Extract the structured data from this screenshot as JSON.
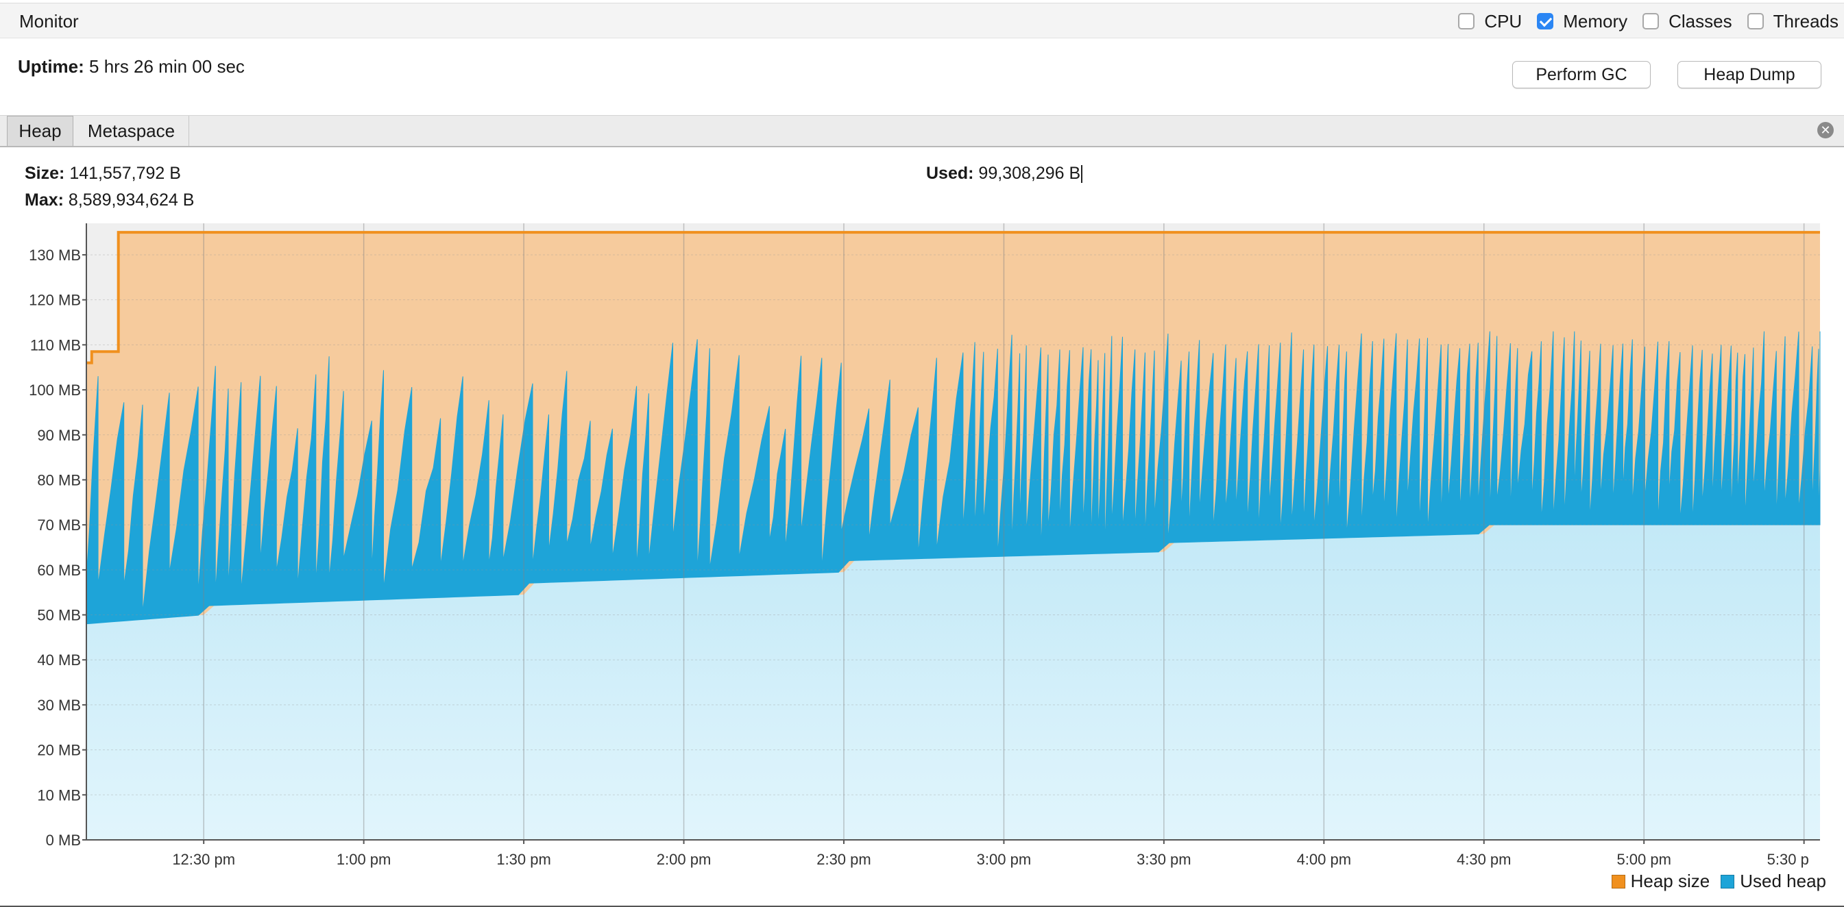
{
  "window": {
    "title": "Monitor"
  },
  "toggles": [
    {
      "label": "CPU",
      "checked": false
    },
    {
      "label": "Memory",
      "checked": true
    },
    {
      "label": "Classes",
      "checked": false
    },
    {
      "label": "Threads",
      "checked": false
    }
  ],
  "uptime": {
    "label": "Uptime:",
    "value": "5 hrs 26 min 00 sec"
  },
  "buttons": {
    "gc": "Perform GC",
    "heap_dump": "Heap Dump"
  },
  "tabs": [
    {
      "label": "Heap",
      "active": true
    },
    {
      "label": "Metaspace",
      "active": false
    }
  ],
  "stats": {
    "size_label": "Size:",
    "size_value": "141,557,792 B",
    "max_label": "Max:",
    "max_value": "8,589,934,624 B",
    "used_label": "Used:",
    "used_value": "99,308,296 B"
  },
  "legend": [
    {
      "name": "Heap size",
      "color": "#f0901e"
    },
    {
      "name": "Used heap",
      "color": "#1ea4d8"
    }
  ],
  "chart_data": {
    "type": "area",
    "ylim": [
      0,
      137
    ],
    "y_unit": "MB",
    "y_ticks": [
      "0 MB",
      "10 MB",
      "20 MB",
      "30 MB",
      "40 MB",
      "50 MB",
      "60 MB",
      "70 MB",
      "80 MB",
      "90 MB",
      "100 MB",
      "110 MB",
      "120 MB",
      "130 MB"
    ],
    "x_ticks": [
      "12:30 pm",
      "1:00 pm",
      "1:30 pm",
      "2:00 pm",
      "2:30 pm",
      "3:00 pm",
      "3:30 pm",
      "4:00 pm",
      "4:30 pm",
      "5:00 pm",
      "5:30 p"
    ],
    "x_start": "12:08 pm",
    "x_end": "5:33 pm",
    "grid": true,
    "legend_position": "bottom-right",
    "series": [
      {
        "name": "Heap size",
        "color": "#f0901e",
        "points": [
          [
            "12:08 pm",
            106
          ],
          [
            "12:09 pm",
            108.5
          ],
          [
            "12:13 pm",
            108.5
          ],
          [
            "12:14 pm",
            135
          ],
          [
            "5:33 pm",
            135
          ]
        ]
      },
      {
        "name": "Used heap",
        "color": "#1ea4d8",
        "description_ranges": [
          {
            "from": "12:08 pm",
            "to": "12:30 pm",
            "min": 48,
            "max": 110
          },
          {
            "from": "12:30 pm",
            "to": "1:30 pm",
            "min": 52,
            "max": 110
          },
          {
            "from": "1:30 pm",
            "to": "2:30 pm",
            "min": 57,
            "max": 110
          },
          {
            "from": "2:30 pm",
            "to": "3:30 pm",
            "min": 62,
            "max": 111
          },
          {
            "from": "3:30 pm",
            "to": "4:30 pm",
            "min": 66,
            "max": 112
          },
          {
            "from": "4:30 pm",
            "to": "5:33 pm",
            "min": 70,
            "max": 112
          }
        ],
        "last_value": 99.3
      }
    ]
  }
}
